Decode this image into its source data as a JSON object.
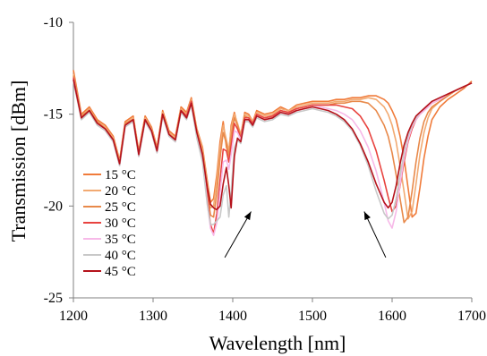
{
  "chart_data": {
    "type": "line",
    "xlabel": "Wavelength  [nm]",
    "ylabel": "Transmission [dBm]",
    "xlim": [
      1200,
      1700
    ],
    "ylim": [
      -25,
      -10
    ],
    "xticks": [
      1200,
      1300,
      1400,
      1500,
      1600,
      1700
    ],
    "yticks": [
      -10,
      -15,
      -20,
      -25
    ],
    "xtick_labels": [
      "1200",
      "1300",
      "1400",
      "1500",
      "1600",
      "1700"
    ],
    "ytick_labels": [
      "-10",
      "-15",
      "-20",
      "-25"
    ],
    "legend_position": "left",
    "grid": false,
    "series": [
      {
        "name": "15 °C",
        "color": "#f07b3a",
        "x": [
          1200,
          1210,
          1220,
          1230,
          1240,
          1250,
          1258,
          1265,
          1275,
          1282,
          1290,
          1298,
          1305,
          1312,
          1320,
          1328,
          1335,
          1342,
          1348,
          1355,
          1362,
          1368,
          1372,
          1376,
          1380,
          1384,
          1388,
          1392,
          1395,
          1398,
          1402,
          1406,
          1410,
          1415,
          1420,
          1425,
          1430,
          1440,
          1450,
          1460,
          1470,
          1480,
          1490,
          1500,
          1510,
          1520,
          1530,
          1540,
          1550,
          1560,
          1570,
          1580,
          1590,
          1595,
          1600,
          1605,
          1610,
          1615,
          1620,
          1625,
          1630,
          1635,
          1640,
          1645,
          1650,
          1660,
          1670,
          1680,
          1690,
          1700
        ],
        "y": [
          -12.6,
          -15.0,
          -14.6,
          -15.3,
          -15.6,
          -16.2,
          -17.5,
          -15.4,
          -15.1,
          -17.0,
          -15.1,
          -15.7,
          -16.8,
          -14.8,
          -15.9,
          -16.2,
          -14.6,
          -14.9,
          -14.1,
          -15.8,
          -16.8,
          -18.6,
          -19.8,
          -19.6,
          -18.3,
          -16.5,
          -15.4,
          -16.8,
          -17.2,
          -15.6,
          -14.9,
          -15.6,
          -16.2,
          -14.9,
          -15.0,
          -15.4,
          -14.8,
          -15.0,
          -14.9,
          -14.6,
          -14.8,
          -14.5,
          -14.4,
          -14.3,
          -14.3,
          -14.3,
          -14.2,
          -14.2,
          -14.1,
          -14.1,
          -14.0,
          -14.0,
          -14.2,
          -14.4,
          -14.8,
          -15.3,
          -16.2,
          -17.4,
          -19.0,
          -20.6,
          -20.4,
          -19.0,
          -17.4,
          -16.2,
          -15.3,
          -14.6,
          -14.2,
          -13.9,
          -13.6,
          -13.2
        ]
      },
      {
        "name": "20 °C",
        "color": "#f2aa72",
        "x": [
          1200,
          1210,
          1220,
          1230,
          1240,
          1250,
          1258,
          1265,
          1275,
          1282,
          1290,
          1298,
          1305,
          1312,
          1320,
          1328,
          1335,
          1342,
          1348,
          1355,
          1362,
          1368,
          1372,
          1376,
          1380,
          1384,
          1388,
          1392,
          1395,
          1398,
          1402,
          1406,
          1410,
          1415,
          1420,
          1425,
          1430,
          1440,
          1450,
          1460,
          1470,
          1480,
          1490,
          1500,
          1510,
          1520,
          1530,
          1540,
          1550,
          1560,
          1570,
          1580,
          1590,
          1595,
          1600,
          1605,
          1610,
          1615,
          1620,
          1625,
          1630,
          1635,
          1640,
          1645,
          1650,
          1660,
          1670,
          1680,
          1690,
          1700
        ],
        "y": [
          -12.8,
          -15.1,
          -14.7,
          -15.4,
          -15.7,
          -16.3,
          -17.6,
          -15.5,
          -15.2,
          -17.1,
          -15.2,
          -15.8,
          -16.9,
          -14.9,
          -16.0,
          -16.3,
          -14.7,
          -15.0,
          -14.2,
          -15.9,
          -16.9,
          -18.8,
          -20.1,
          -20.0,
          -18.6,
          -16.8,
          -15.6,
          -16.4,
          -17.0,
          -15.8,
          -15.0,
          -15.5,
          -16.1,
          -15.0,
          -15.1,
          -15.4,
          -14.9,
          -15.1,
          -15.0,
          -14.7,
          -14.8,
          -14.6,
          -14.5,
          -14.4,
          -14.4,
          -14.4,
          -14.3,
          -14.3,
          -14.2,
          -14.2,
          -14.1,
          -14.2,
          -14.6,
          -15.0,
          -15.6,
          -16.5,
          -17.8,
          -19.2,
          -20.7,
          -20.3,
          -18.8,
          -17.2,
          -16.0,
          -15.2,
          -14.7,
          -14.3,
          -14.0,
          -13.7,
          -13.5,
          -13.3
        ]
      },
      {
        "name": "25 °C",
        "color": "#e8894a",
        "x": [
          1200,
          1210,
          1220,
          1230,
          1240,
          1250,
          1258,
          1265,
          1275,
          1282,
          1290,
          1298,
          1305,
          1312,
          1320,
          1328,
          1335,
          1342,
          1348,
          1355,
          1362,
          1368,
          1372,
          1376,
          1380,
          1384,
          1388,
          1392,
          1395,
          1398,
          1402,
          1406,
          1410,
          1415,
          1420,
          1425,
          1430,
          1440,
          1450,
          1460,
          1470,
          1480,
          1490,
          1500,
          1510,
          1520,
          1530,
          1540,
          1550,
          1560,
          1570,
          1580,
          1590,
          1595,
          1600,
          1605,
          1610,
          1615,
          1620,
          1625,
          1630,
          1635,
          1640,
          1645,
          1650,
          1660,
          1670,
          1680,
          1690,
          1700
        ],
        "y": [
          -12.9,
          -15.1,
          -14.8,
          -15.4,
          -15.8,
          -16.4,
          -17.7,
          -15.5,
          -15.3,
          -17.2,
          -15.3,
          -15.9,
          -17.0,
          -15.0,
          -16.1,
          -16.4,
          -14.8,
          -15.1,
          -14.3,
          -16.0,
          -17.1,
          -19.1,
          -20.5,
          -20.6,
          -19.3,
          -17.4,
          -16.0,
          -16.6,
          -17.3,
          -16.2,
          -15.2,
          -15.6,
          -16.2,
          -15.1,
          -15.2,
          -15.5,
          -15.0,
          -15.2,
          -15.1,
          -14.8,
          -14.9,
          -14.7,
          -14.6,
          -14.5,
          -14.5,
          -14.5,
          -14.4,
          -14.4,
          -14.3,
          -14.3,
          -14.4,
          -14.8,
          -15.6,
          -16.2,
          -17.1,
          -18.3,
          -19.6,
          -20.9,
          -20.6,
          -19.2,
          -17.6,
          -16.3,
          -15.4,
          -14.9,
          -14.6,
          -14.3,
          -14.0,
          -13.7,
          -13.5,
          -13.3
        ]
      },
      {
        "name": "30 °C",
        "color": "#e8433f",
        "x": [
          1200,
          1210,
          1220,
          1230,
          1240,
          1250,
          1258,
          1265,
          1275,
          1282,
          1290,
          1298,
          1305,
          1312,
          1320,
          1328,
          1335,
          1342,
          1348,
          1355,
          1362,
          1368,
          1372,
          1376,
          1380,
          1384,
          1388,
          1392,
          1395,
          1398,
          1402,
          1406,
          1410,
          1415,
          1420,
          1425,
          1430,
          1440,
          1450,
          1460,
          1470,
          1480,
          1490,
          1500,
          1510,
          1520,
          1530,
          1540,
          1550,
          1560,
          1570,
          1580,
          1590,
          1595,
          1600,
          1605,
          1610,
          1615,
          1620,
          1625,
          1630,
          1635,
          1640,
          1645,
          1650,
          1660,
          1670,
          1680,
          1690,
          1700
        ],
        "y": [
          -13.0,
          -15.2,
          -14.8,
          -15.5,
          -15.8,
          -16.4,
          -17.7,
          -15.6,
          -15.3,
          -17.2,
          -15.3,
          -15.9,
          -17.0,
          -15.0,
          -16.1,
          -16.4,
          -14.8,
          -15.1,
          -14.3,
          -16.1,
          -17.3,
          -19.5,
          -21.0,
          -21.5,
          -20.4,
          -18.6,
          -16.9,
          -17.0,
          -17.6,
          -16.7,
          -15.5,
          -15.8,
          -16.3,
          -15.2,
          -15.2,
          -15.5,
          -15.0,
          -15.2,
          -15.1,
          -14.8,
          -14.9,
          -14.7,
          -14.6,
          -14.5,
          -14.5,
          -14.5,
          -14.5,
          -14.6,
          -14.7,
          -15.1,
          -15.8,
          -17.0,
          -18.6,
          -19.5,
          -20.3,
          -20.0,
          -18.9,
          -17.6,
          -16.5,
          -15.8,
          -15.3,
          -15.0,
          -14.8,
          -14.6,
          -14.4,
          -14.2,
          -13.9,
          -13.7,
          -13.5,
          -13.3
        ]
      },
      {
        "name": "35 °C",
        "color": "#f7b9e8",
        "x": [
          1200,
          1210,
          1220,
          1230,
          1240,
          1250,
          1258,
          1265,
          1275,
          1282,
          1290,
          1298,
          1305,
          1312,
          1320,
          1328,
          1335,
          1342,
          1348,
          1355,
          1362,
          1368,
          1372,
          1376,
          1380,
          1384,
          1388,
          1392,
          1395,
          1398,
          1402,
          1406,
          1410,
          1415,
          1420,
          1425,
          1430,
          1440,
          1450,
          1460,
          1470,
          1480,
          1490,
          1500,
          1510,
          1520,
          1530,
          1540,
          1550,
          1560,
          1570,
          1580,
          1590,
          1595,
          1600,
          1605,
          1610,
          1615,
          1620,
          1625,
          1630,
          1635,
          1640,
          1645,
          1650,
          1660,
          1670,
          1680,
          1690,
          1700
        ],
        "y": [
          -13.1,
          -15.2,
          -14.9,
          -15.5,
          -15.9,
          -16.5,
          -17.8,
          -15.6,
          -15.4,
          -17.3,
          -15.4,
          -16.0,
          -17.1,
          -15.1,
          -16.2,
          -16.5,
          -14.9,
          -15.2,
          -14.4,
          -16.2,
          -17.5,
          -19.8,
          -21.2,
          -21.6,
          -20.9,
          -19.3,
          -17.6,
          -17.5,
          -18.0,
          -17.2,
          -15.9,
          -16.0,
          -16.4,
          -15.3,
          -15.3,
          -15.6,
          -15.1,
          -15.3,
          -15.2,
          -14.9,
          -15.0,
          -14.8,
          -14.7,
          -14.6,
          -14.6,
          -14.7,
          -14.8,
          -15.0,
          -15.3,
          -15.9,
          -16.8,
          -18.1,
          -19.8,
          -20.8,
          -21.2,
          -20.3,
          -18.8,
          -17.4,
          -16.4,
          -15.7,
          -15.3,
          -15.0,
          -14.8,
          -14.6,
          -14.4,
          -14.2,
          -13.9,
          -13.7,
          -13.5,
          -13.3
        ]
      },
      {
        "name": "40 °C",
        "color": "#c8c8c8",
        "x": [
          1200,
          1210,
          1220,
          1230,
          1240,
          1250,
          1258,
          1265,
          1275,
          1282,
          1290,
          1298,
          1305,
          1312,
          1320,
          1328,
          1335,
          1342,
          1348,
          1355,
          1362,
          1368,
          1372,
          1376,
          1380,
          1384,
          1388,
          1392,
          1395,
          1398,
          1402,
          1406,
          1410,
          1415,
          1420,
          1425,
          1430,
          1440,
          1450,
          1460,
          1470,
          1480,
          1490,
          1500,
          1510,
          1520,
          1530,
          1540,
          1550,
          1560,
          1570,
          1580,
          1590,
          1595,
          1600,
          1605,
          1610,
          1615,
          1620,
          1625,
          1630,
          1635,
          1640,
          1645,
          1650,
          1660,
          1670,
          1680,
          1690,
          1700
        ],
        "y": [
          -13.2,
          -15.3,
          -14.9,
          -15.6,
          -15.9,
          -16.5,
          -17.8,
          -15.7,
          -15.4,
          -17.3,
          -15.4,
          -16.0,
          -17.1,
          -15.1,
          -16.2,
          -16.5,
          -14.9,
          -15.3,
          -14.5,
          -16.3,
          -17.6,
          -19.9,
          -21.0,
          -21.0,
          -20.8,
          -20.6,
          -19.4,
          -18.9,
          -20.6,
          -19.2,
          -16.8,
          -16.4,
          -16.6,
          -15.4,
          -15.4,
          -15.7,
          -15.2,
          -15.4,
          -15.3,
          -15.0,
          -15.1,
          -14.9,
          -14.8,
          -14.7,
          -14.8,
          -14.9,
          -15.1,
          -15.4,
          -15.9,
          -16.7,
          -17.8,
          -19.2,
          -20.4,
          -20.7,
          -20.5,
          -19.6,
          -18.3,
          -17.1,
          -16.2,
          -15.6,
          -15.2,
          -14.9,
          -14.7,
          -14.5,
          -14.3,
          -14.1,
          -13.9,
          -13.7,
          -13.5,
          -13.3
        ]
      },
      {
        "name": "45 °C",
        "color": "#b5121b",
        "x": [
          1200,
          1210,
          1220,
          1230,
          1240,
          1250,
          1258,
          1265,
          1275,
          1282,
          1290,
          1298,
          1305,
          1312,
          1320,
          1328,
          1335,
          1342,
          1348,
          1355,
          1362,
          1368,
          1372,
          1376,
          1380,
          1384,
          1388,
          1392,
          1395,
          1398,
          1402,
          1406,
          1410,
          1415,
          1420,
          1425,
          1430,
          1440,
          1450,
          1460,
          1470,
          1480,
          1490,
          1500,
          1510,
          1520,
          1530,
          1540,
          1550,
          1560,
          1570,
          1580,
          1590,
          1595,
          1600,
          1605,
          1610,
          1615,
          1620,
          1625,
          1630,
          1635,
          1640,
          1645,
          1650,
          1660,
          1670,
          1680,
          1690,
          1700
        ],
        "y": [
          -13.1,
          -15.2,
          -14.8,
          -15.5,
          -15.8,
          -16.4,
          -17.7,
          -15.6,
          -15.3,
          -17.2,
          -15.3,
          -15.9,
          -17.0,
          -15.0,
          -16.1,
          -16.4,
          -14.8,
          -15.2,
          -14.4,
          -16.0,
          -17.2,
          -19.0,
          -19.9,
          -20.1,
          -20.2,
          -20.0,
          -18.8,
          -17.9,
          -18.9,
          -20.1,
          -17.3,
          -16.3,
          -16.5,
          -15.3,
          -15.3,
          -15.6,
          -15.1,
          -15.3,
          -15.2,
          -14.9,
          -15.0,
          -14.8,
          -14.7,
          -14.6,
          -14.7,
          -14.8,
          -15.0,
          -15.3,
          -15.8,
          -16.6,
          -17.6,
          -18.8,
          -19.8,
          -20.1,
          -19.8,
          -18.9,
          -17.7,
          -16.7,
          -16.0,
          -15.5,
          -15.1,
          -14.9,
          -14.7,
          -14.5,
          -14.3,
          -14.1,
          -13.9,
          -13.7,
          -13.5,
          -13.3
        ]
      }
    ],
    "annotations": [
      {
        "type": "arrow",
        "from": [
          1390,
          -22.8
        ],
        "to": [
          1423,
          -20.3
        ]
      },
      {
        "type": "arrow",
        "from": [
          1592,
          -22.8
        ],
        "to": [
          1565,
          -20.3
        ]
      }
    ]
  }
}
